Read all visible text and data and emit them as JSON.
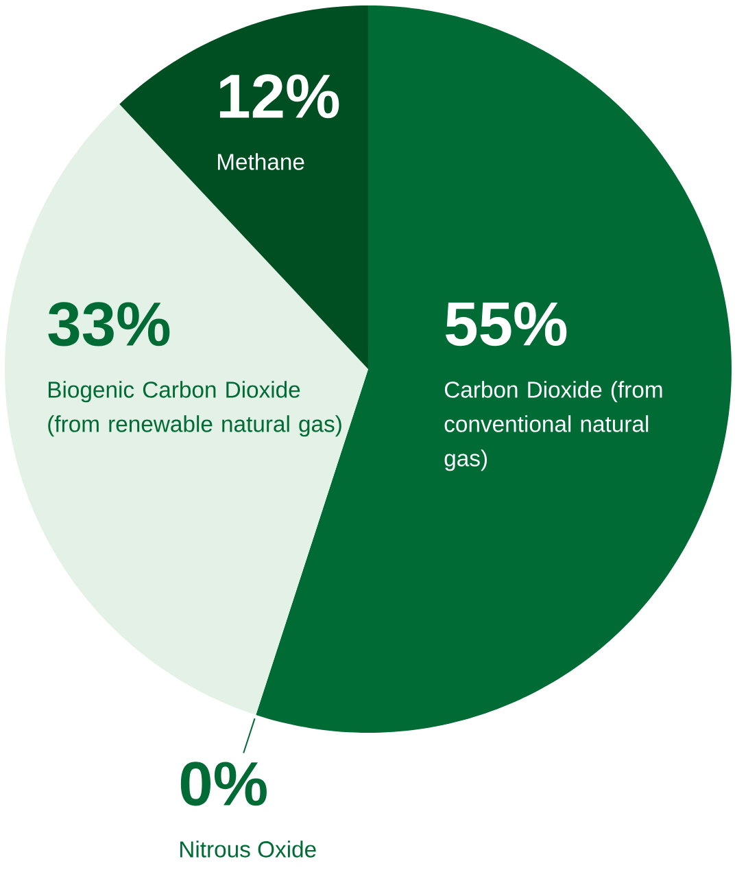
{
  "chart_data": {
    "type": "pie",
    "categories": [
      "Carbon Dioxide (from conventional natural gas)",
      "Nitrous Oxide",
      "Biogenic Carbon Dioxide (from renewable natural gas)",
      "Methane"
    ],
    "values": [
      55,
      0,
      33,
      12
    ],
    "value_labels": [
      "55%",
      "0%",
      "33%",
      "12%"
    ],
    "colors": [
      "#006b35",
      "#006b35",
      "#e3f1e6",
      "#004f22"
    ]
  }
}
